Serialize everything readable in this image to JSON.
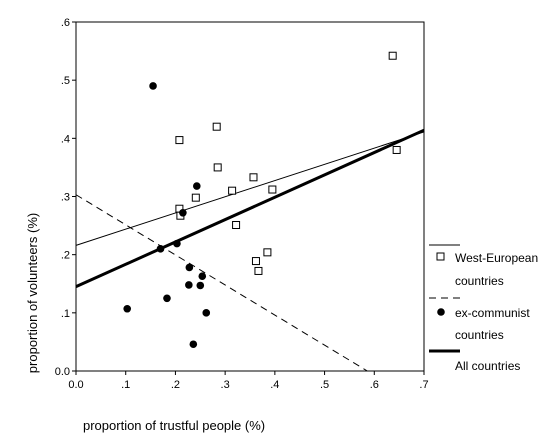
{
  "chart_data": {
    "type": "scatter",
    "xlabel": "proportion of trustful people (%)",
    "ylabel": "proportion of volunteers (%)",
    "xlim": [
      0,
      0.7
    ],
    "ylim": [
      0,
      0.6
    ],
    "x_ticks": [
      0,
      0.1,
      0.2,
      0.3,
      0.4,
      0.5,
      0.6,
      0.7
    ],
    "y_ticks": [
      0,
      0.1,
      0.2,
      0.3,
      0.4,
      0.5,
      0.6
    ],
    "x_tick_labels": [
      "0.0",
      ".1",
      ".2",
      ".3",
      ".4",
      ".5",
      ".6",
      ".7"
    ],
    "y_tick_labels": [
      "0.0",
      ".1",
      ".2",
      ".3",
      ".4",
      ".5",
      ".6"
    ],
    "grid": false,
    "legend_position": "right",
    "series": [
      {
        "name": "West-European countries",
        "marker": "open-square",
        "line_style": "thin-solid",
        "points": [
          [
            0.637,
            0.542
          ],
          [
            0.645,
            0.38
          ],
          [
            0.208,
            0.397
          ],
          [
            0.283,
            0.42
          ],
          [
            0.285,
            0.35
          ],
          [
            0.357,
            0.333
          ],
          [
            0.395,
            0.312
          ],
          [
            0.314,
            0.31
          ],
          [
            0.241,
            0.298
          ],
          [
            0.208,
            0.279
          ],
          [
            0.21,
            0.267
          ],
          [
            0.322,
            0.251
          ],
          [
            0.385,
            0.204
          ],
          [
            0.362,
            0.189
          ],
          [
            0.367,
            0.172
          ]
        ],
        "fit_line": [
          [
            0,
            0.216
          ],
          [
            0.7,
            0.411
          ]
        ]
      },
      {
        "name": "ex-communist countries",
        "marker": "filled-circle",
        "line_style": "dashed",
        "points": [
          [
            0.155,
            0.49
          ],
          [
            0.243,
            0.318
          ],
          [
            0.215,
            0.272
          ],
          [
            0.203,
            0.219
          ],
          [
            0.17,
            0.21
          ],
          [
            0.228,
            0.178
          ],
          [
            0.254,
            0.163
          ],
          [
            0.227,
            0.148
          ],
          [
            0.25,
            0.147
          ],
          [
            0.183,
            0.125
          ],
          [
            0.103,
            0.107
          ],
          [
            0.262,
            0.1
          ],
          [
            0.236,
            0.046
          ]
        ],
        "fit_line": [
          [
            0,
            0.303
          ],
          [
            0.586,
            0
          ]
        ]
      },
      {
        "name": "All countries",
        "marker": "none",
        "line_style": "thick-solid",
        "points": [],
        "fit_line": [
          [
            0,
            0.145
          ],
          [
            0.7,
            0.414
          ]
        ]
      }
    ],
    "legend_entries": [
      {
        "text": "West-European",
        "text2": "countries",
        "symbol": "open-square",
        "line": "thin-solid"
      },
      {
        "text": "ex-communist",
        "text2": "countries",
        "symbol": "filled-circle",
        "line": "dashed"
      },
      {
        "text": "All countries",
        "text2": "",
        "symbol": "none",
        "line": "thick-solid"
      }
    ]
  }
}
